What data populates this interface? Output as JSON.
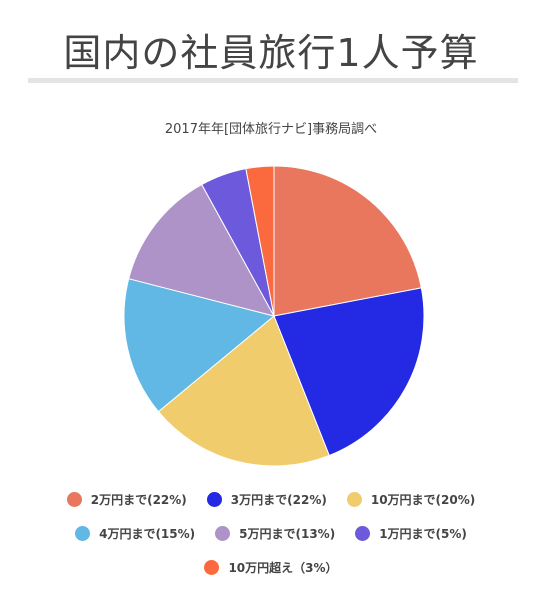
{
  "chart_data": {
    "type": "pie",
    "title": "国内の社員旅行1人予算",
    "subtitle": "2017年年[団体旅行ナビ]事務局調べ",
    "categories": [
      "2万円まで",
      "3万円まで",
      "10万円まで",
      "4万円まで",
      "5万円まで",
      "1万円まで",
      "10万円超え"
    ],
    "values": [
      22,
      22,
      20,
      15,
      13,
      5,
      3
    ],
    "colors": [
      "#e8775e",
      "#2429e3",
      "#f0cc6c",
      "#62b8e4",
      "#ad93c8",
      "#6c59dc",
      "#fb6a3e"
    ],
    "legend_position": "bottom",
    "legend": [
      [
        "2万円まで(22%)",
        "3万円まで(22%)",
        "10万円まで(20%)"
      ],
      [
        "4万円まで(15%)",
        "5万円まで(13%)",
        "1万円まで(5%)"
      ],
      [
        "10万円超え（3%）"
      ]
    ]
  }
}
